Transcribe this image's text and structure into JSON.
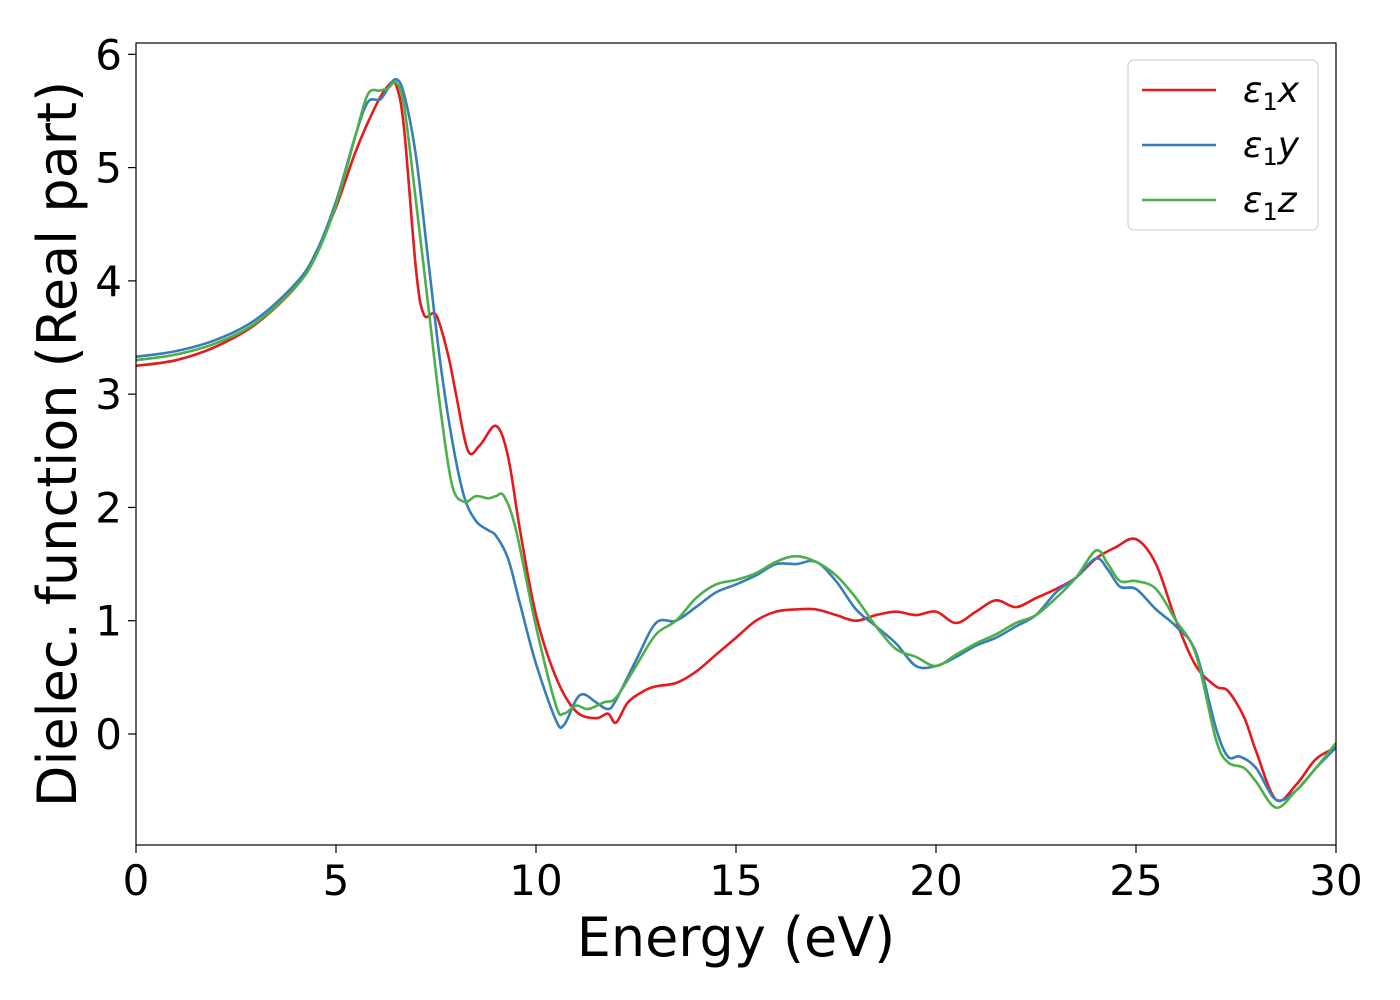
{
  "chart_data": {
    "type": "line",
    "xlabel": "Energy (eV)",
    "ylabel": "Dielec. function (Real part)",
    "xlim": [
      0,
      30
    ],
    "ylim": [
      -0.98,
      6.1
    ],
    "xticks": [
      0,
      5,
      10,
      15,
      20,
      25,
      30
    ],
    "yticks": [
      0,
      1,
      2,
      3,
      4,
      5,
      6
    ],
    "xtick_labels": [
      "0",
      "5",
      "10",
      "15",
      "20",
      "25",
      "30"
    ],
    "ytick_labels": [
      "0",
      "1",
      "2",
      "3",
      "4",
      "5",
      "6"
    ],
    "grid": false,
    "legend_position": "top-right",
    "series": [
      {
        "name": "ε₁x",
        "legend_main": "ε",
        "legend_sub": "1",
        "legend_suffix": "x",
        "color": "#e41a1c",
        "x": [
          0,
          1,
          2,
          3,
          4,
          4.5,
          5,
          5.5,
          6,
          6.3,
          6.5,
          6.7,
          7,
          7.2,
          7.5,
          7.8,
          8,
          8.3,
          8.6,
          9,
          9.3,
          9.6,
          10,
          10.5,
          11,
          11.5,
          11.8,
          12,
          12.3,
          12.7,
          13,
          13.5,
          14,
          14.5,
          15,
          15.5,
          16,
          16.5,
          17,
          17.5,
          18,
          18.5,
          19,
          19.5,
          20,
          20.5,
          21,
          21.5,
          22,
          22.5,
          23,
          23.5,
          24,
          24.5,
          25,
          25.5,
          26,
          26.5,
          27,
          27.3,
          27.7,
          28,
          28.5,
          29,
          29.5,
          30
        ],
        "y": [
          3.25,
          3.3,
          3.42,
          3.62,
          3.95,
          4.25,
          4.65,
          5.15,
          5.55,
          5.72,
          5.73,
          5.35,
          4.1,
          3.7,
          3.7,
          3.35,
          3.0,
          2.5,
          2.55,
          2.72,
          2.45,
          1.8,
          1.05,
          0.5,
          0.2,
          0.14,
          0.18,
          0.1,
          0.28,
          0.38,
          0.42,
          0.45,
          0.55,
          0.7,
          0.85,
          1.0,
          1.08,
          1.1,
          1.1,
          1.05,
          1.0,
          1.05,
          1.08,
          1.05,
          1.08,
          0.98,
          1.08,
          1.18,
          1.12,
          1.2,
          1.28,
          1.38,
          1.55,
          1.65,
          1.72,
          1.5,
          1.0,
          0.6,
          0.42,
          0.38,
          0.15,
          -0.15,
          -0.58,
          -0.45,
          -0.22,
          -0.12
        ]
      },
      {
        "name": "ε₁y",
        "legend_main": "ε",
        "legend_sub": "1",
        "legend_suffix": "y",
        "color": "#377eb8",
        "x": [
          0,
          1,
          2,
          3,
          4,
          4.5,
          5,
          5.5,
          5.8,
          6.1,
          6.3,
          6.5,
          6.7,
          7,
          7.3,
          7.6,
          7.9,
          8.2,
          8.5,
          8.8,
          9,
          9.3,
          9.6,
          10,
          10.5,
          10.7,
          11,
          11.2,
          11.5,
          11.8,
          12,
          12.5,
          13,
          13.5,
          14,
          14.5,
          15,
          15.5,
          16,
          16.5,
          17,
          17.5,
          18,
          18.5,
          19,
          19.5,
          20,
          20.5,
          21,
          21.5,
          22,
          22.5,
          23,
          23.5,
          24,
          24.3,
          24.6,
          25,
          25.5,
          26,
          26.5,
          27,
          27.3,
          27.6,
          28,
          28.5,
          29,
          29.5,
          30
        ],
        "y": [
          3.33,
          3.38,
          3.48,
          3.66,
          3.98,
          4.25,
          4.7,
          5.3,
          5.58,
          5.6,
          5.7,
          5.78,
          5.65,
          5.1,
          4.2,
          3.3,
          2.6,
          2.1,
          1.88,
          1.8,
          1.75,
          1.55,
          1.15,
          0.62,
          0.12,
          0.08,
          0.3,
          0.35,
          0.28,
          0.22,
          0.3,
          0.65,
          0.98,
          1.0,
          1.12,
          1.25,
          1.32,
          1.4,
          1.5,
          1.5,
          1.52,
          1.35,
          1.1,
          0.95,
          0.8,
          0.6,
          0.6,
          0.68,
          0.78,
          0.85,
          0.95,
          1.05,
          1.25,
          1.38,
          1.55,
          1.45,
          1.3,
          1.28,
          1.1,
          0.95,
          0.72,
          0.05,
          -0.2,
          -0.2,
          -0.3,
          -0.58,
          -0.5,
          -0.3,
          -0.12
        ]
      },
      {
        "name": "ε₁z",
        "legend_main": "ε",
        "legend_sub": "1",
        "legend_suffix": "z",
        "color": "#4daf4a",
        "x": [
          0,
          1,
          2,
          3,
          4,
          4.5,
          5,
          5.5,
          5.8,
          6.1,
          6.3,
          6.5,
          6.7,
          7,
          7.3,
          7.6,
          7.9,
          8.2,
          8.5,
          8.8,
          9,
          9.2,
          9.5,
          10,
          10.5,
          10.7,
          11,
          11.3,
          11.7,
          12,
          12.5,
          13,
          13.5,
          14,
          14.5,
          15,
          15.5,
          16,
          16.5,
          17,
          17.5,
          18,
          18.5,
          19,
          19.5,
          20,
          20.5,
          21,
          21.5,
          22,
          22.5,
          23,
          23.5,
          24,
          24.3,
          24.6,
          25,
          25.5,
          26,
          26.5,
          27,
          27.3,
          27.7,
          28,
          28.5,
          29,
          29.5,
          30
        ],
        "y": [
          3.3,
          3.35,
          3.45,
          3.63,
          3.95,
          4.22,
          4.67,
          5.3,
          5.65,
          5.68,
          5.7,
          5.75,
          5.55,
          4.7,
          3.8,
          2.9,
          2.2,
          2.05,
          2.1,
          2.08,
          2.1,
          2.1,
          1.8,
          0.95,
          0.25,
          0.18,
          0.25,
          0.22,
          0.28,
          0.32,
          0.6,
          0.88,
          1.0,
          1.2,
          1.32,
          1.36,
          1.42,
          1.52,
          1.57,
          1.52,
          1.4,
          1.2,
          0.95,
          0.75,
          0.68,
          0.6,
          0.7,
          0.8,
          0.88,
          0.98,
          1.05,
          1.2,
          1.38,
          1.62,
          1.5,
          1.35,
          1.35,
          1.28,
          1.0,
          0.7,
          -0.05,
          -0.25,
          -0.3,
          -0.42,
          -0.65,
          -0.5,
          -0.3,
          -0.08
        ]
      }
    ]
  }
}
